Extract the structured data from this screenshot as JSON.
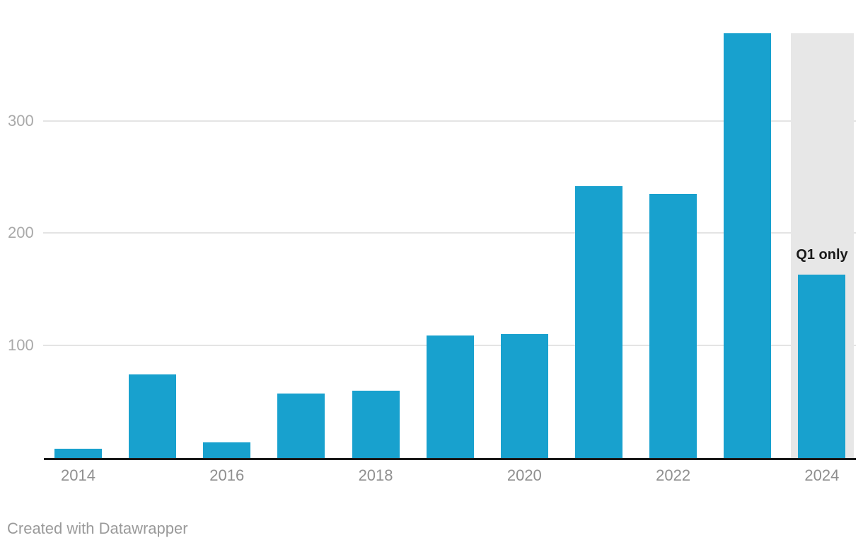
{
  "chart_data": {
    "type": "bar",
    "title": "",
    "xlabel": "",
    "ylabel": "",
    "categories": [
      "2014",
      "2015",
      "2016",
      "2017",
      "2018",
      "2019",
      "2020",
      "2021",
      "2022",
      "2023",
      "2024"
    ],
    "values": [
      8,
      74,
      14,
      57,
      60,
      109,
      110,
      242,
      235,
      378,
      163
    ],
    "x_tick_labels": [
      "2014",
      "2016",
      "2018",
      "2020",
      "2022",
      "2024"
    ],
    "y_ticks": [
      100,
      200,
      300
    ],
    "ylim": [
      0,
      380
    ],
    "grid": "horizontal-only",
    "legend": "none",
    "annotation": {
      "text": "Q1 only",
      "target_category": "2024"
    },
    "highlight": {
      "category": "2024",
      "style": "gray-background-band"
    },
    "colors": {
      "bar": "#18a1ce",
      "highlight_band": "#e7e7e7",
      "gridline": "#e4e4e4",
      "axis_line": "#1a1a1a",
      "y_tick_label": "#a9a9a9",
      "x_tick_label": "#8f8f8f",
      "annotation_text": "#1a1a1a",
      "credit_text": "#9a9a9a"
    }
  },
  "footer": {
    "credit": "Created with Datawrapper"
  }
}
